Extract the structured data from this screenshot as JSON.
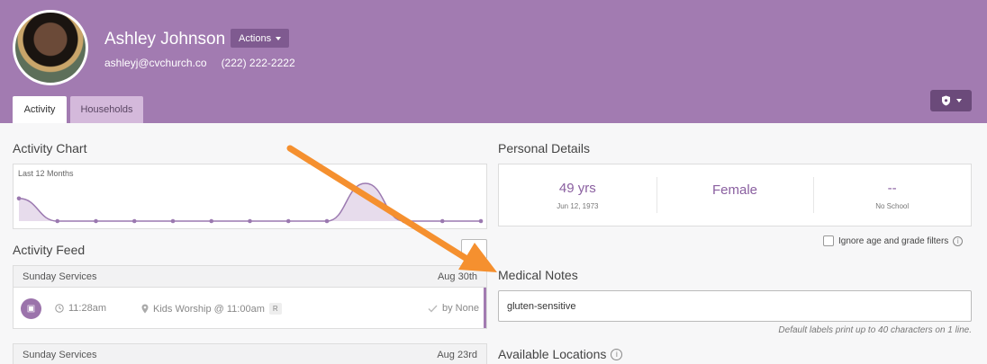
{
  "profile": {
    "name": "Ashley Johnson",
    "actions_label": "Actions",
    "email": "ashleyj@cvchurch.co",
    "phone": "(222) 222-2222"
  },
  "tabs": [
    {
      "label": "Activity",
      "active": true
    },
    {
      "label": "Households",
      "active": false
    }
  ],
  "activity_chart": {
    "title": "Activity Chart",
    "range_label": "Last 12 Months"
  },
  "chart_data": {
    "type": "area",
    "title": "",
    "range_label": "Last 12 Months",
    "x": [
      0,
      1,
      2,
      3,
      4,
      5,
      6,
      7,
      8,
      9,
      10,
      11,
      12
    ],
    "values": [
      0.6,
      0,
      0,
      0,
      0,
      0,
      0,
      0,
      0,
      1,
      0,
      0,
      0
    ],
    "ylim": [
      0,
      1
    ],
    "grid": false,
    "color": "#9b79b0"
  },
  "activity_feed": {
    "title": "Activity Feed",
    "cards": [
      {
        "event": "Sunday Services",
        "date": "Aug 30th",
        "time": "11:28am",
        "location": "Kids Worship @ 11:00am",
        "badge": "R",
        "checked_by": "by None"
      },
      {
        "event": "Sunday Services",
        "date": "Aug 23rd"
      }
    ]
  },
  "personal_details": {
    "title": "Personal Details",
    "age": "49 yrs",
    "birthdate": "Jun 12, 1973",
    "gender": "Female",
    "grade": "--",
    "school": "No School"
  },
  "filters": {
    "ignore_label": "Ignore age and grade filters",
    "checked": false
  },
  "medical_notes": {
    "title": "Medical Notes",
    "value": "gluten-sensitive",
    "hint": "Default labels print up to 40 characters on 1 line."
  },
  "available_locations": {
    "title": "Available Locations"
  },
  "colors": {
    "header": "#a27bb1",
    "accent": "#8a5fa0",
    "arrow": "#f5902f"
  }
}
